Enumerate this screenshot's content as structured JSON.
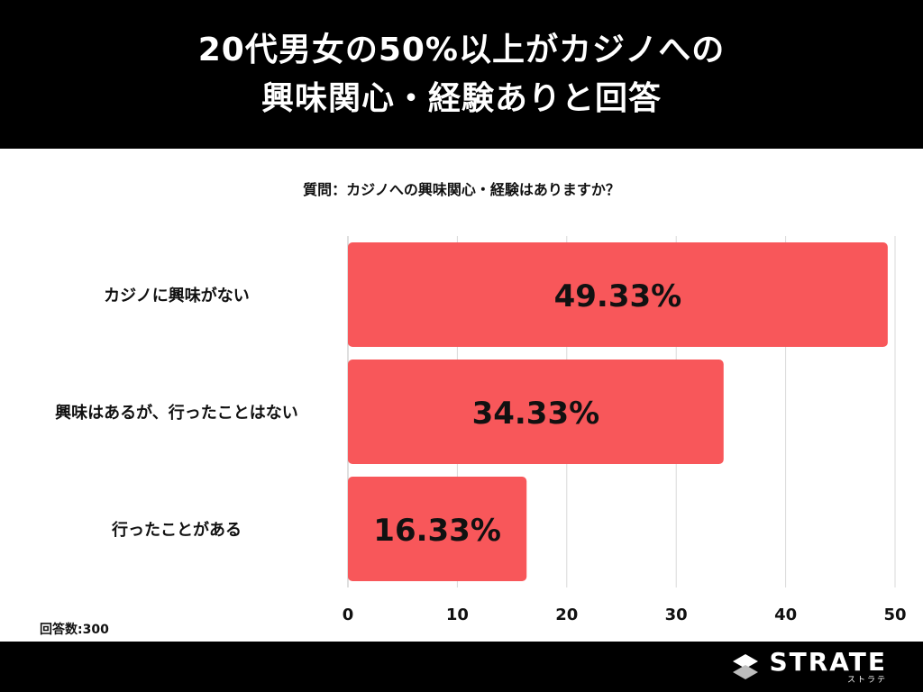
{
  "header": {
    "title_line1": "20代男女の50%以上がカジノへの",
    "title_line2": "興味関心・経験ありと回答"
  },
  "question": "質問：カジノへの興味関心・経験はありますか？",
  "respondents": "回答数:300",
  "logo": {
    "name": "STRATE",
    "sub": "ストラテ",
    "icon": "strate-logo-icon"
  },
  "colors": {
    "bar": "#F8575A",
    "header_bg": "#000000",
    "grid": "#d9d9d9"
  },
  "chart_data": {
    "type": "bar",
    "orientation": "horizontal",
    "categories": [
      "カジノに興味がない",
      "興味はあるが、行ったことはない",
      "行ったことがある"
    ],
    "values": [
      49.33,
      34.33,
      16.33
    ],
    "value_labels": [
      "49.33%",
      "34.33%",
      "16.33%"
    ],
    "xlim": [
      0,
      50
    ],
    "xticks": [
      0,
      10,
      20,
      30,
      40,
      50
    ],
    "grid": true
  }
}
